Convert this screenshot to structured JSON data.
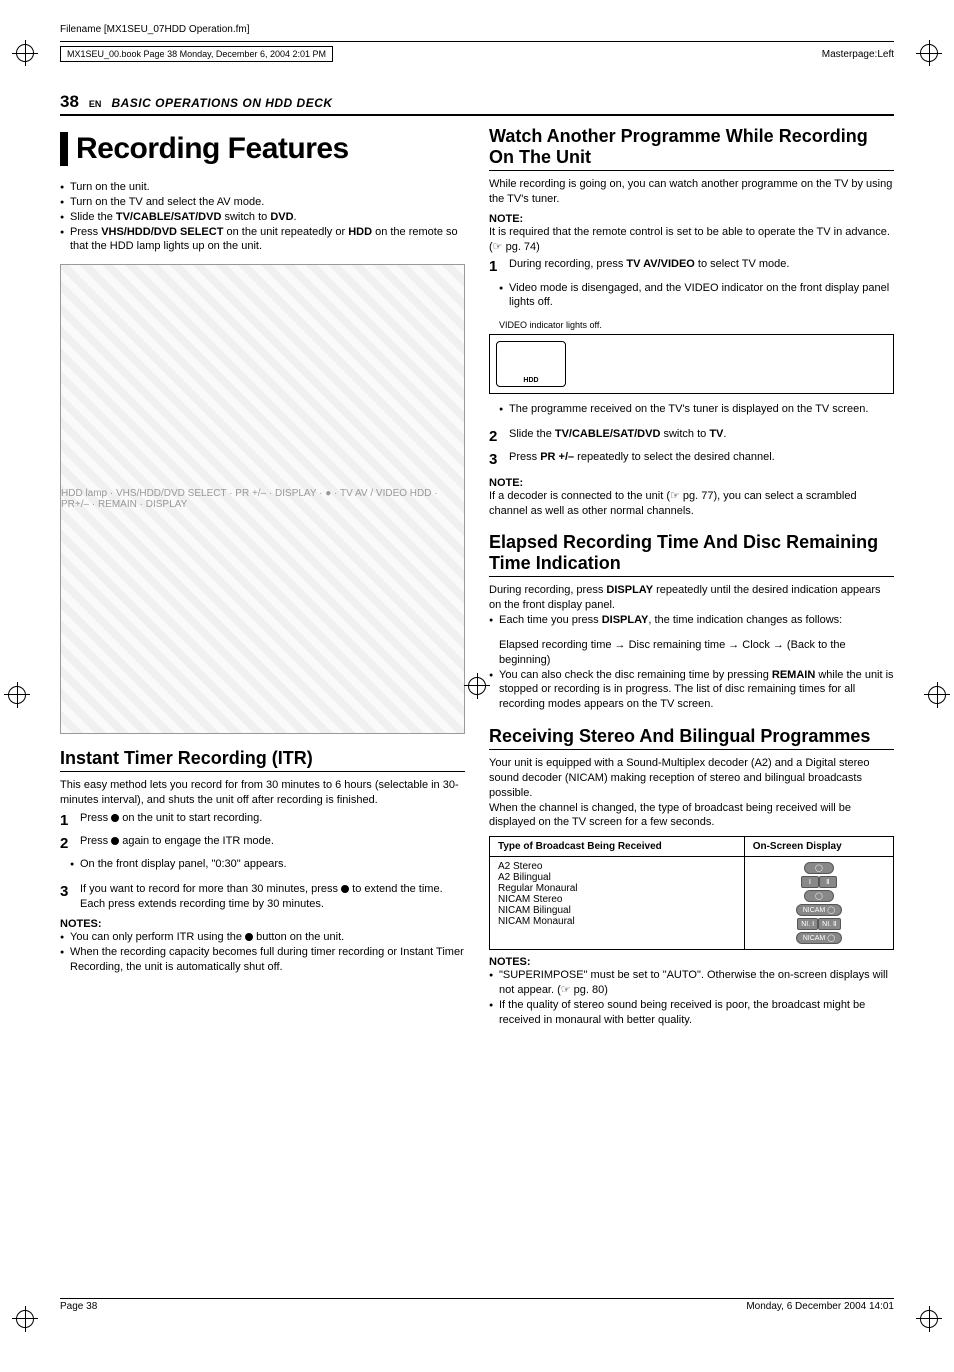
{
  "meta": {
    "filename_line": "Filename [MX1SEU_07HDD Operation.fm]",
    "book_line": "MX1SEU_00.book  Page 38  Monday, December 6, 2004  2:01 PM",
    "masterpage": "Masterpage:Left",
    "footer_left": "Page 38",
    "footer_right": "Monday, 6 December 2004  14:01"
  },
  "page_head": {
    "number": "38",
    "lang": "EN",
    "section": "BASIC OPERATIONS ON HDD DECK"
  },
  "left": {
    "title": "Recording Features",
    "setup_items": [
      "Turn on the unit.",
      "Turn on the TV and select the AV mode.",
      "Slide the <b>TV/CABLE/SAT/DVD</b> switch to <b>DVD</b>.",
      "Press <b>VHS/HDD/DVD SELECT</b> on the unit repeatedly or <b>HDD</b> on the remote so that the HDD lamp lights up on the unit."
    ],
    "figure_caption": "HDD lamp · VHS/HDD/DVD SELECT · PR +/– · DISPLAY · ● · TV AV / VIDEO HDD · PR+/– · REMAIN · DISPLAY",
    "itr": {
      "heading": "Instant Timer Recording (ITR)",
      "intro": "This easy method lets you record for from 30 minutes to 6 hours (selectable in 30-minutes interval), and shuts the unit off after recording is finished.",
      "steps": [
        "Press ● on the unit to start recording.",
        "Press ● again to engage the ITR mode.",
        "If you want to record for more than 30 minutes, press ● to extend the time. Each press extends recording time by 30 minutes."
      ],
      "step2_sub": "On the front display panel, \"0:30\" appears.",
      "notes_head": "NOTES:",
      "notes": [
        "You can only perform ITR using the ● button on the unit.",
        "When the recording capacity becomes full during timer recording or Instant Timer Recording, the unit is automatically shut off."
      ]
    }
  },
  "right": {
    "watch": {
      "heading": "Watch Another Programme While Recording On The Unit",
      "intro": "While recording is going on, you can watch another programme on the TV by using the TV's tuner.",
      "note_head": "NOTE:",
      "note_body": "It is required that the remote control is set to be able to operate the TV in advance. (☞ pg. 74)",
      "step1": "During recording, press <b>TV AV/VIDEO</b> to select TV mode.",
      "step1_sub": "Video mode is disengaged, and the VIDEO indicator on the front display panel lights off.",
      "fig_caption": "VIDEO indicator lights off.",
      "fig_label": "HDD",
      "post_fig": "The programme received on the TV's tuner is displayed on the TV screen.",
      "step2": "Slide the <b>TV/CABLE/SAT/DVD</b> switch to <b>TV</b>.",
      "step3": "Press <b>PR +/–</b> repeatedly to select the desired channel.",
      "note2_head": "NOTE:",
      "note2_body": "If a decoder is connected to the unit (☞ pg. 77), you can select a scrambled channel as well as other normal channels."
    },
    "elapsed": {
      "heading": "Elapsed Recording Time And Disc Remaining Time Indication",
      "intro": "During recording, press <b>DISPLAY</b> repeatedly until the desired indication appears on the front display panel.",
      "b1": "Each time you press <b>DISPLAY</b>, the time indication changes as follows:",
      "seq": "Elapsed recording time → Disc remaining time → Clock → (Back to the beginning)",
      "b2": "You can also check the disc remaining time by pressing <b>REMAIN</b> while the unit is stopped or recording is in progress. The list of disc remaining times for all recording modes appears on the TV screen."
    },
    "stereo": {
      "heading": "Receiving Stereo And Bilingual Programmes",
      "p1": "Your unit is equipped with a Sound-Multiplex decoder (A2) and a Digital stereo sound decoder (NICAM) making reception of stereo and bilingual broadcasts possible.",
      "p2": "When the channel is changed, the type of broadcast being received will be displayed on the TV screen for a few seconds.",
      "table": {
        "col1": "Type of Broadcast Being Received",
        "col2": "On-Screen Display",
        "rows": [
          "A2 Stereo",
          "A2 Bilingual",
          "Regular Monaural",
          "NICAM Stereo",
          "NICAM Bilingual",
          "NICAM Monaural"
        ]
      },
      "notes_head": "NOTES:",
      "notes": [
        "\"SUPERIMPOSE\" must be set to \"AUTO\". Otherwise the on-screen displays will not appear. (☞ pg. 80)",
        "If the quality of stereo sound being received is poor, the broadcast might be received in monaural with better quality."
      ]
    }
  }
}
